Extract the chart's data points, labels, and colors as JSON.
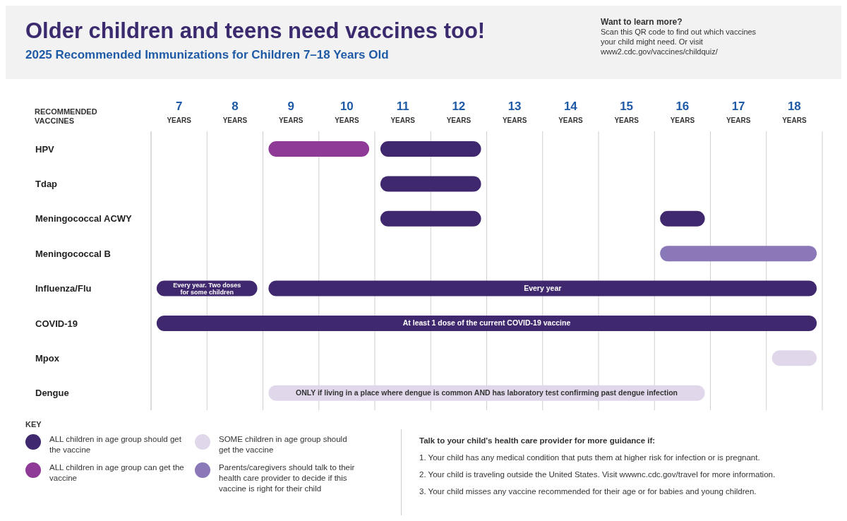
{
  "chart_data": {
    "type": "bar",
    "orientation": "horizontal",
    "title": "Older children and teens need vaccines too!",
    "subtitle": "2025 Recommended Immunizations for Children 7–18 Years Old",
    "ylabel": "RECOMMENDED VACCINES",
    "legend_title": "KEY",
    "legend": "bottom left",
    "grid": "x",
    "categories": [
      "HPV",
      "Tdap",
      "Meningococcal ACWY",
      "Meningococcal B",
      "Influenza/Flu",
      "COVID-19",
      "Mpox",
      "Dengue"
    ],
    "xlim": [
      7,
      19
    ],
    "xticks": [
      {
        "value": 7,
        "label": null
      },
      {
        "value": 7.5,
        "label": "7 YEARS"
      },
      {
        "value": 8,
        "label": null
      },
      {
        "value": 8.5,
        "label": "8 YEARS"
      },
      {
        "value": 9,
        "label": null
      },
      {
        "value": 9.5,
        "label": "9 YEARS"
      },
      {
        "value": 10,
        "label": null
      },
      {
        "value": 10.5,
        "label": "10 YEARS"
      },
      {
        "value": 11,
        "label": null
      },
      {
        "value": 11.5,
        "label": "11 YEARS"
      },
      {
        "value": 12,
        "label": null
      },
      {
        "value": 12.5,
        "label": "12 YEARS"
      },
      {
        "value": 13,
        "label": null
      },
      {
        "value": 13.5,
        "label": "13 YEARS"
      },
      {
        "value": 14,
        "label": null
      },
      {
        "value": 14.5,
        "label": "14 YEARS"
      },
      {
        "value": 15,
        "label": null
      },
      {
        "value": 15.5,
        "label": "15 YEARS"
      },
      {
        "value": 16,
        "label": null
      },
      {
        "value": 16.5,
        "label": "16 YEARS"
      },
      {
        "value": 17,
        "label": null
      },
      {
        "value": 17.5,
        "label": "17 YEARS"
      },
      {
        "value": 18,
        "label": null
      },
      {
        "value": 18.5,
        "label": "18 YEARS"
      },
      {
        "value": 19,
        "label": null
      }
    ],
    "series": [
      {
        "name": "ALL children in age group should get the vaccine",
        "color": "#40286f",
        "base": [
          11.1,
          11.1,
          11.1,
          null,
          7.1,
          7.1,
          null,
          null
        ],
        "values": [
          1.8,
          1.8,
          1.8,
          null,
          1.8,
          11.8,
          null,
          null
        ],
        "value_labels": [
          null,
          null,
          null,
          null,
          "Every year. Two doses for some children",
          "At least 1 dose of the current COVID-19 vaccine",
          null,
          null
        ]
      },
      {
        "name": "ALL children in age group can get the vaccine",
        "color": "#8e3a96",
        "base": [
          9.1,
          null,
          null,
          null,
          null,
          null,
          null,
          null
        ],
        "values": [
          1.8,
          null,
          null,
          null,
          null,
          null,
          null,
          null
        ]
      },
      {
        "name": "SOME children in age group should get the vaccine",
        "color": "#e0d8ea",
        "base": [
          null,
          null,
          null,
          null,
          null,
          null,
          18.1,
          9.1
        ],
        "values": [
          null,
          null,
          null,
          null,
          null,
          null,
          0.8,
          7.8
        ],
        "value_labels": [
          null,
          null,
          null,
          null,
          null,
          null,
          null,
          "ONLY if living in a place where dengue is common AND has laboratory test confirming past dengue infection"
        ]
      },
      {
        "name": "Parents/caregivers should talk to their health care provider to decide if this vaccine is right for their child",
        "color": "#8a78b8",
        "base": [
          null,
          null,
          null,
          16.1,
          null,
          null,
          null,
          null
        ],
        "values": [
          null,
          null,
          null,
          2.8,
          null,
          null,
          null,
          null
        ]
      },
      {
        "color": "#40286f",
        "base": [
          null,
          null,
          16.1,
          null,
          9.1,
          null,
          null,
          null
        ],
        "values": [
          null,
          null,
          0.8,
          null,
          9.8,
          null,
          null,
          null
        ],
        "value_labels": [
          null,
          null,
          null,
          null,
          "Every year",
          null,
          null,
          null
        ]
      }
    ],
    "annotations": [
      "Want to learn more?",
      "Scan this QR code to find out which vaccines your child might need. Or visit www2.cdc.gov/vaccines/childquiz/",
      "Talk to your child's health care provider for more guidance if:",
      "1. Your child has any medical condition that puts them at higher risk for infection or is pregnant.",
      "2. Your child is traveling outside the United States. Visit wwwnc.cdc.gov/travel for more information.",
      "3. Your child misses any vaccine recommended for their age or for babies and young children."
    ]
  }
}
